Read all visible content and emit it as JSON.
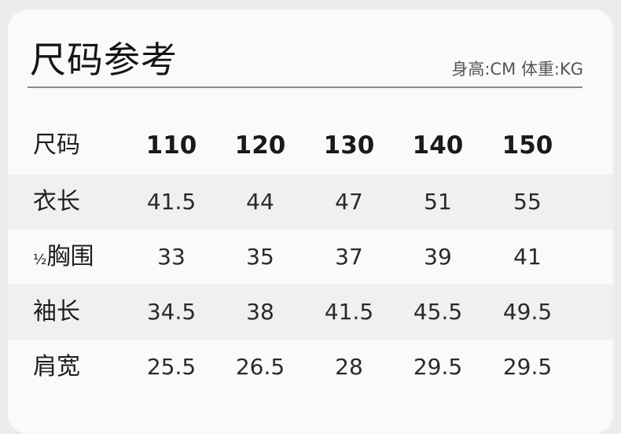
{
  "title": "尺码参考",
  "units": "身高:CM 体重:KG",
  "header": {
    "label": "尺码",
    "sizes": [
      "110",
      "120",
      "130",
      "140",
      "150"
    ]
  },
  "rows": [
    {
      "label": "衣长",
      "values": [
        "41.5",
        "44",
        "47",
        "51",
        "55"
      ]
    },
    {
      "label_prefix": "½",
      "label": "胸围",
      "values": [
        "33",
        "35",
        "37",
        "39",
        "41"
      ]
    },
    {
      "label": "袖长",
      "values": [
        "34.5",
        "38",
        "41.5",
        "45.5",
        "49.5"
      ]
    },
    {
      "label": "肩宽",
      "values": [
        "25.5",
        "26.5",
        "28",
        "29.5",
        "29.5"
      ]
    }
  ]
}
